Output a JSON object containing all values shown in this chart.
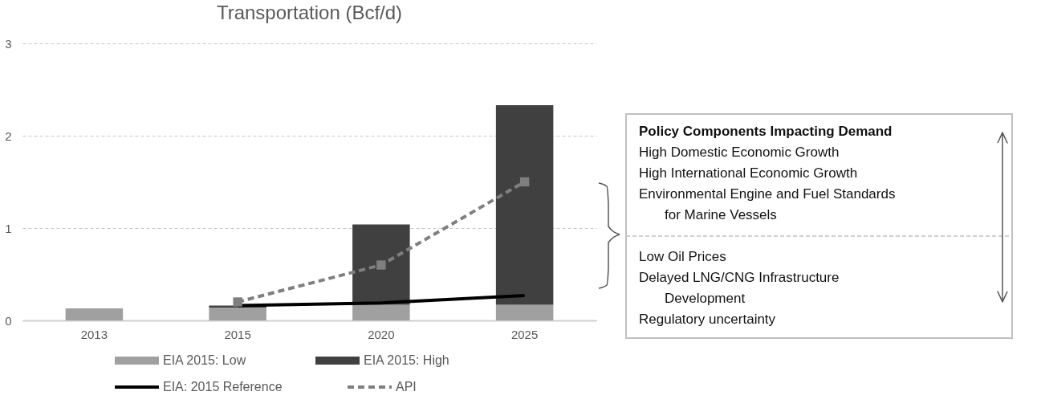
{
  "chart_data": {
    "type": "bar",
    "title": "Transportation (Bcf/d)",
    "stacked": true,
    "categories": [
      "2013",
      "2015",
      "2020",
      "2025"
    ],
    "series": [
      {
        "name": "EIA 2015: Low",
        "color": "#a0a0a0",
        "values": [
          0.13,
          0.14,
          0.17,
          0.17
        ]
      },
      {
        "name": "EIA 2015: High",
        "color": "#404040",
        "values": [
          null,
          0.02,
          0.87,
          2.16
        ]
      },
      {
        "name": "EIA: 2015 Reference",
        "type": "line",
        "color": "#000000",
        "line_style": "solid",
        "marker": "none",
        "values": [
          null,
          0.16,
          0.19,
          0.27
        ]
      },
      {
        "name": "API",
        "type": "line",
        "color": "#7f7f7f",
        "line_style": "dashed",
        "marker": "square",
        "values": [
          null,
          0.2,
          0.6,
          1.5
        ]
      }
    ],
    "ylim": [
      0,
      3
    ],
    "yticks": [
      0,
      1,
      2,
      3
    ],
    "grid": "y",
    "legend": "bottom",
    "annotations": [
      "Policy Components Impacting Demand",
      "High Domestic Economic Growth",
      "High International Economic Growth",
      "Environmental Engine and Fuel Standards\nfor Marine Vessels",
      "Low Oil Prices",
      "Delayed LNG/CNG Infrastructure\nDevelopment",
      "Regulatory uncertainty"
    ]
  }
}
